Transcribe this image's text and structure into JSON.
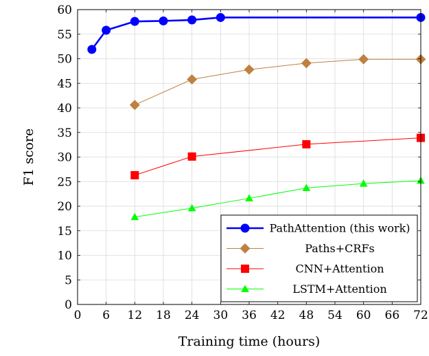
{
  "chart_data": {
    "type": "line",
    "xlabel": "Training time (hours)",
    "ylabel": "F1 score",
    "xlim": [
      0,
      72
    ],
    "ylim": [
      0,
      60
    ],
    "xticks": [
      0,
      6,
      12,
      18,
      24,
      30,
      36,
      42,
      48,
      54,
      60,
      66,
      72
    ],
    "yticks": [
      0,
      5,
      10,
      15,
      20,
      25,
      30,
      35,
      40,
      45,
      50,
      55,
      60
    ],
    "grid": true,
    "legend_position": "bottom-right",
    "series": [
      {
        "name": "PathAttention (this work)",
        "color": "#0000ff",
        "marker": "circle",
        "x": [
          3,
          6,
          12,
          18,
          24,
          30,
          72
        ],
        "y": [
          51.9,
          55.8,
          57.6,
          57.7,
          57.9,
          58.4,
          58.4
        ]
      },
      {
        "name": "Paths+CRFs",
        "color": "#bf8040",
        "marker": "diamond",
        "x": [
          12,
          24,
          36,
          48,
          60,
          72
        ],
        "y": [
          40.6,
          45.8,
          47.8,
          49.1,
          49.9,
          49.9
        ]
      },
      {
        "name": "CNN+Attention",
        "color": "#ff0000",
        "marker": "square",
        "x": [
          12,
          24,
          48,
          72
        ],
        "y": [
          26.3,
          30.1,
          32.6,
          33.9
        ]
      },
      {
        "name": "LSTM+Attention",
        "color": "#00ff00",
        "marker": "triangle",
        "x": [
          12,
          24,
          36,
          48,
          60,
          72
        ],
        "y": [
          17.8,
          19.6,
          21.6,
          23.7,
          24.6,
          25.2
        ]
      }
    ]
  }
}
